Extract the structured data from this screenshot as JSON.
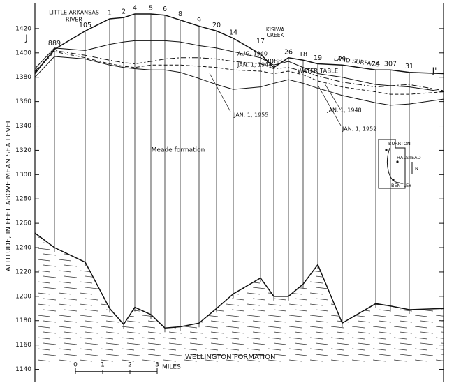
{
  "chart_data": {
    "type": "line",
    "y_label": "ALTITUDE, IN FEET ABOVE MEAN SEA LEVEL",
    "categories": [
      null,
      "889",
      "105",
      "1",
      "2",
      "4",
      "5",
      "6",
      "8",
      "9",
      "20",
      "14",
      "17",
      "2088",
      "26",
      "18",
      "19",
      "21",
      "24",
      "307",
      "31",
      null
    ],
    "series": [
      {
        "name": "LAND SURFACE",
        "color": "#111111",
        "style": "solid",
        "values": [
          1383,
          1403,
          1418,
          1428,
          1429,
          1432,
          1432,
          1431,
          1427,
          1422,
          1418,
          1412,
          1399,
          1388,
          1396,
          1394,
          1391,
          1390,
          1386,
          1386,
          1384,
          1383
        ]
      },
      {
        "name": "AUG. 1940",
        "color": "#111111",
        "style": "solid",
        "values": [
          1387,
          1404,
          1402,
          1407,
          1409,
          1410,
          1410,
          1410,
          1409,
          1406,
          1404,
          1401,
          1396,
          1390,
          1393,
          1388,
          1383,
          1380,
          1374,
          1373,
          1372,
          1368
        ]
      },
      {
        "name": "JAN. 1, 1944",
        "color": "#111111",
        "style": "dashdot",
        "values": [
          1385,
          1402,
          1398,
          1394,
          1392,
          1391,
          1393,
          1395,
          1396,
          1396,
          1395,
          1393,
          1391,
          1387,
          1388,
          1385,
          1381,
          1376,
          1372,
          1373,
          1374,
          1369
        ]
      },
      {
        "name": "JAN. 1, 1952",
        "color": "#111111",
        "style": "dashed",
        "values": [
          1384,
          1401,
          1396,
          1391,
          1389,
          1388,
          1390,
          1390,
          1390,
          1389,
          1388,
          1386,
          1385,
          1383,
          1385,
          1382,
          1377,
          1372,
          1368,
          1366,
          1366,
          1368
        ]
      },
      {
        "name": "JAN. 1, 1955",
        "color": "#111111",
        "style": "solid",
        "values": [
          1380,
          1397,
          1395,
          1390,
          1388,
          1387,
          1386,
          1386,
          1384,
          1379,
          1374,
          1370,
          1372,
          1375,
          1378,
          1375,
          1371,
          1365,
          1359,
          1357,
          1358,
          1362
        ]
      },
      {
        "name": "WELLINGTON FORMATION",
        "color": "#111111",
        "style": "solid",
        "values": [
          1252,
          1240,
          1228,
          1190,
          1177,
          1191,
          1185,
          1174,
          1175,
          1178,
          1190,
          1202,
          1215,
          1200,
          1200,
          1210,
          1226,
          1178,
          1194,
          1192,
          1189,
          1190
        ]
      }
    ],
    "ylim": [
      1130,
      1440
    ],
    "yticks": [
      1140,
      1160,
      1180,
      1200,
      1220,
      1240,
      1260,
      1280,
      1300,
      1320,
      1340,
      1360,
      1380,
      1400,
      1420
    ],
    "annotations": [
      "J",
      "J'",
      "LITTLE ARKANSAS",
      "RIVER",
      "KISIWA",
      "CREEK",
      "WATER TABLE",
      "Meade formation",
      "JAN. 1, 1948"
    ],
    "scale_bar": {
      "labels": [
        "0",
        "1",
        "2",
        "3"
      ],
      "unit": "MILES"
    },
    "inset_map": {
      "labels": [
        "BURRTON",
        "HALSTEAD",
        "BENTLEY",
        "N"
      ]
    }
  }
}
